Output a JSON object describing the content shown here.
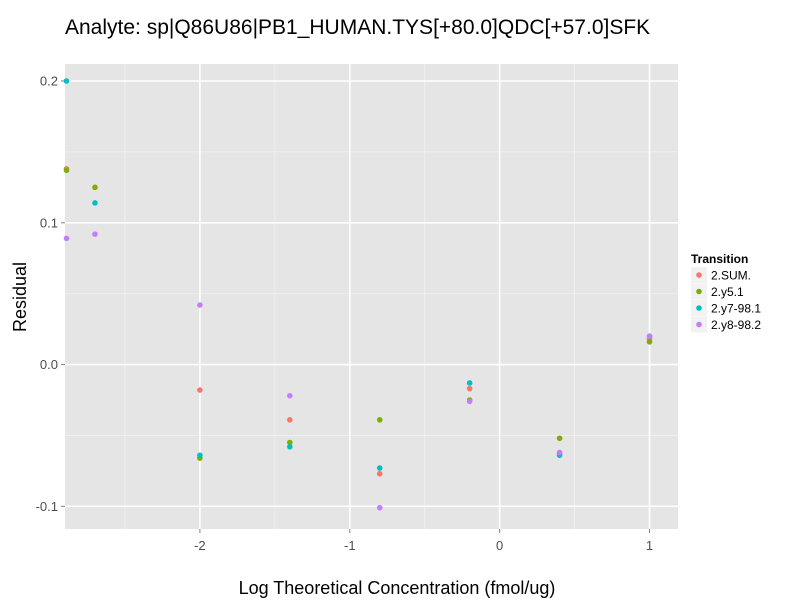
{
  "chart_data": {
    "type": "scatter",
    "title": "Analyte: sp|Q86U86|PB1_HUMAN.TYS[+80.0]QDC[+57.0]SFK",
    "xlabel": "Log Theoretical Concentration (fmol/ug)",
    "ylabel": "Residual",
    "xlim": [
      -2.9,
      1.19
    ],
    "ylim": [
      -0.116,
      0.212
    ],
    "x_ticks": [
      -2,
      -1,
      0,
      1
    ],
    "x_tick_labels": [
      "-2",
      "-1",
      "0",
      "1"
    ],
    "y_ticks": [
      -0.1,
      0.0,
      0.1,
      0.2
    ],
    "y_tick_labels": [
      "-0.1",
      "0.0",
      "0.1",
      "0.2"
    ],
    "grid": true,
    "legend": {
      "title": "Transition",
      "position": "right"
    },
    "series": [
      {
        "name": "2.SUM.",
        "color": "#F8766D",
        "points": [
          [
            -2.89,
            0.138
          ],
          [
            -2.0,
            -0.018
          ],
          [
            -1.4,
            -0.039
          ],
          [
            -0.8,
            -0.077
          ],
          [
            -0.2,
            -0.017
          ],
          [
            0.4,
            -0.063
          ],
          [
            1.0,
            0.018
          ]
        ]
      },
      {
        "name": "2.y5.1",
        "color": "#7CAE00",
        "points": [
          [
            -2.89,
            0.137
          ],
          [
            -2.7,
            0.125
          ],
          [
            -2.0,
            -0.066
          ],
          [
            -1.4,
            -0.055
          ],
          [
            -0.8,
            -0.039
          ],
          [
            -0.2,
            -0.025
          ],
          [
            0.4,
            -0.052
          ],
          [
            1.0,
            0.016
          ]
        ]
      },
      {
        "name": "2.y7-98.1",
        "color": "#00BFC4",
        "points": [
          [
            -2.89,
            0.2
          ],
          [
            -2.7,
            0.114
          ],
          [
            -2.0,
            -0.064
          ],
          [
            -1.4,
            -0.058
          ],
          [
            -0.8,
            -0.073
          ],
          [
            -0.2,
            -0.013
          ],
          [
            0.4,
            -0.064
          ],
          [
            1.0,
            0.02
          ]
        ]
      },
      {
        "name": "2.y8-98.2",
        "color": "#C77CFF",
        "points": [
          [
            -2.89,
            0.089
          ],
          [
            -2.7,
            0.092
          ],
          [
            -2.0,
            0.042
          ],
          [
            -1.4,
            -0.022
          ],
          [
            -0.8,
            -0.101
          ],
          [
            -0.2,
            -0.026
          ],
          [
            0.4,
            -0.062
          ],
          [
            1.0,
            0.02
          ]
        ]
      }
    ]
  }
}
